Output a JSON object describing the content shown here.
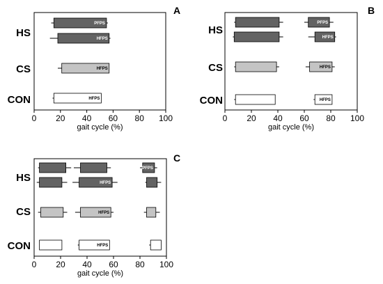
{
  "colors": {
    "HS": "#636363",
    "CS": "#c4c4c4",
    "CON": "#ffffff",
    "label_on_dark": "#ffffff",
    "label_on_light": "#000000"
  },
  "chart_data": [
    {
      "panel": "A",
      "type": "bar",
      "orientation": "horizontal",
      "xlabel": "gait cycle (%)",
      "xlim": [
        0,
        100
      ],
      "xticks": [
        "0",
        "20",
        "40",
        "60",
        "80",
        "100"
      ],
      "groups": [
        "HS",
        "CS",
        "CON"
      ],
      "bars": [
        {
          "group": "HS",
          "row": 0,
          "start": 15,
          "end": 55,
          "whisker_low": 13,
          "whisker_high": 56,
          "label": "PFPS"
        },
        {
          "group": "HS",
          "row": 1,
          "start": 18,
          "end": 57,
          "whisker_low": 12,
          "whisker_high": 58,
          "label": "HFPS"
        },
        {
          "group": "CS",
          "row": 0,
          "start": 21,
          "end": 57,
          "whisker_low": 18,
          "whisker_high": 57,
          "label": "HFPS"
        },
        {
          "group": "CON",
          "row": 0,
          "start": 15,
          "end": 51,
          "whisker_low": 14,
          "whisker_high": 51,
          "label": "HFPS"
        }
      ]
    },
    {
      "panel": "B",
      "type": "bar",
      "orientation": "horizontal",
      "xlabel": "gait cycle (%)",
      "xlim": [
        0,
        100
      ],
      "xticks": [
        "0",
        "20",
        "40",
        "60",
        "80",
        "100"
      ],
      "groups": [
        "HS",
        "CS",
        "CON"
      ],
      "bars": [
        {
          "group": "HS",
          "row": 0,
          "start": 8,
          "end": 41,
          "whisker_low": 7,
          "whisker_high": 44,
          "label": ""
        },
        {
          "group": "HS",
          "row": 0,
          "start": 63,
          "end": 79,
          "whisker_low": 60,
          "whisker_high": 82,
          "label": "PFPS"
        },
        {
          "group": "HS",
          "row": 1,
          "start": 7,
          "end": 41,
          "whisker_low": 6,
          "whisker_high": 44,
          "label": ""
        },
        {
          "group": "HS",
          "row": 1,
          "start": 68,
          "end": 83,
          "whisker_low": 63,
          "whisker_high": 84,
          "label": "HFPS"
        },
        {
          "group": "CS",
          "row": 0,
          "start": 8,
          "end": 39,
          "whisker_low": 7,
          "whisker_high": 41,
          "label": ""
        },
        {
          "group": "CS",
          "row": 0,
          "start": 64,
          "end": 81,
          "whisker_low": 61,
          "whisker_high": 83,
          "label": "HFPS"
        },
        {
          "group": "CON",
          "row": 0,
          "start": 8,
          "end": 38,
          "whisker_low": 7,
          "whisker_high": 38,
          "label": ""
        },
        {
          "group": "CON",
          "row": 0,
          "start": 68,
          "end": 81,
          "whisker_low": 67,
          "whisker_high": 81,
          "label": "HFPS"
        }
      ]
    },
    {
      "panel": "C",
      "type": "bar",
      "orientation": "horizontal",
      "xlabel": "gait cycle (%)",
      "xlim": [
        0,
        100
      ],
      "xticks": [
        "0",
        "20",
        "40",
        "60",
        "80",
        "100"
      ],
      "groups": [
        "HS",
        "CS",
        "CON"
      ],
      "bars": [
        {
          "group": "HS",
          "row": 0,
          "start": 4,
          "end": 24,
          "whisker_low": 3,
          "whisker_high": 28,
          "label": ""
        },
        {
          "group": "HS",
          "row": 0,
          "start": 35,
          "end": 55,
          "whisker_low": 30,
          "whisker_high": 58,
          "label": ""
        },
        {
          "group": "HS",
          "row": 0,
          "start": 82,
          "end": 91,
          "whisker_low": 80,
          "whisker_high": 93,
          "label": "PFPS"
        },
        {
          "group": "HS",
          "row": 1,
          "start": 4,
          "end": 21,
          "whisker_low": 2,
          "whisker_high": 25,
          "label": ""
        },
        {
          "group": "HS",
          "row": 1,
          "start": 34,
          "end": 59,
          "whisker_low": 29,
          "whisker_high": 63,
          "label": "HFPS"
        },
        {
          "group": "HS",
          "row": 1,
          "start": 85,
          "end": 93,
          "whisker_low": 84,
          "whisker_high": 96,
          "label": ""
        },
        {
          "group": "CS",
          "row": 0,
          "start": 5,
          "end": 22,
          "whisker_low": 3,
          "whisker_high": 25,
          "label": ""
        },
        {
          "group": "CS",
          "row": 0,
          "start": 35,
          "end": 58,
          "whisker_low": 31,
          "whisker_high": 60,
          "label": "HFPS"
        },
        {
          "group": "CS",
          "row": 0,
          "start": 85,
          "end": 92,
          "whisker_low": 83,
          "whisker_high": 95,
          "label": ""
        },
        {
          "group": "CON",
          "row": 0,
          "start": 4,
          "end": 21,
          "whisker_low": 4,
          "whisker_high": 21,
          "label": ""
        },
        {
          "group": "CON",
          "row": 0,
          "start": 34,
          "end": 57,
          "whisker_low": 33,
          "whisker_high": 57,
          "label": "HFPS"
        },
        {
          "group": "CON",
          "row": 0,
          "start": 88,
          "end": 96,
          "whisker_low": 87,
          "whisker_high": 96,
          "label": ""
        }
      ]
    }
  ]
}
